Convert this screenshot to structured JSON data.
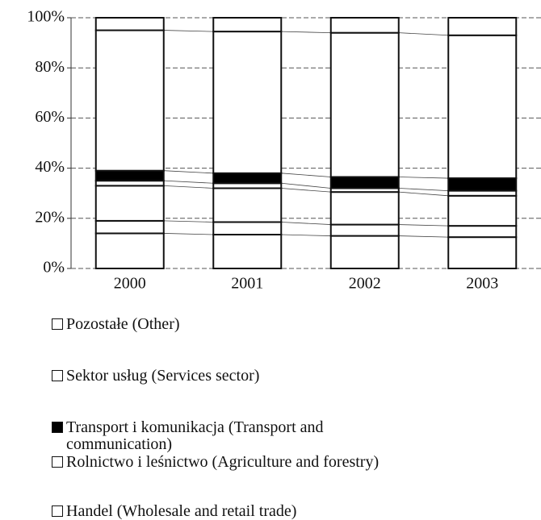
{
  "chart_data": {
    "type": "stacked_bar_100",
    "categories": [
      "2000",
      "2001",
      "2002",
      "2003"
    ],
    "series": [
      {
        "name": null,
        "color": "#ffffff",
        "values": [
          14,
          13.5,
          13,
          12.5
        ]
      },
      {
        "name": null,
        "color": "#ffffff",
        "values": [
          5,
          5,
          4.5,
          4.5
        ]
      },
      {
        "name": "Handel (Wholesale and retail trade)",
        "color": "#ffffff",
        "values": [
          14,
          13.5,
          13,
          12
        ]
      },
      {
        "name": "Rolnictwo i leśnictwo (Agriculture and forestry)",
        "color": "#ffffff",
        "values": [
          2,
          2,
          1.5,
          2
        ]
      },
      {
        "name": "Transport i komunikacja (Transport and communication)",
        "color": "#000000",
        "values": [
          4,
          4,
          4.5,
          5
        ]
      },
      {
        "name": "Sektor usług (Services sector)",
        "color": "#ffffff",
        "values": [
          56,
          56.5,
          57.5,
          57
        ]
      },
      {
        "name": "Pozostałe (Other)",
        "color": "#ffffff",
        "values": [
          5,
          5.5,
          6,
          7
        ]
      }
    ],
    "ylim": [
      0,
      100
    ],
    "yticks": [
      {
        "value": 0,
        "label": "0%"
      },
      {
        "value": 20,
        "label": "20%"
      },
      {
        "value": 40,
        "label": "40%"
      },
      {
        "value": 60,
        "label": "60%"
      },
      {
        "value": 80,
        "label": "80%"
      },
      {
        "value": 100,
        "label": "100%"
      }
    ],
    "grid": true
  }
}
